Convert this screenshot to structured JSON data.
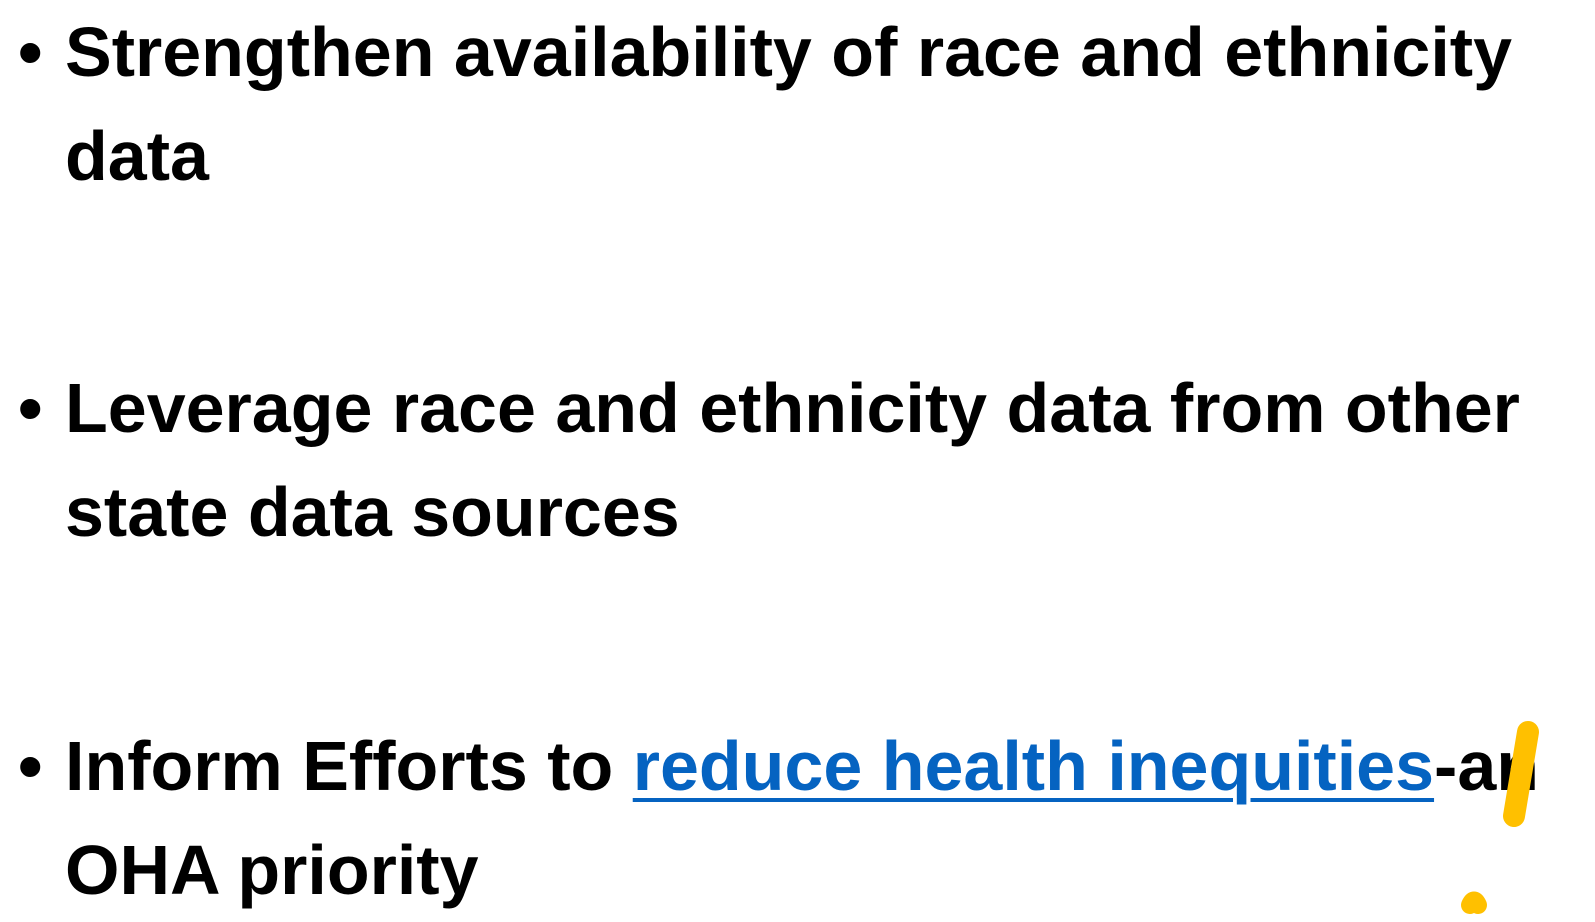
{
  "bullets": [
    {
      "segments": [
        {
          "text": "Strengthen availability of race and ethnicity data"
        }
      ]
    },
    {
      "segments": [
        {
          "text": "Leverage race and ethnicity data from other state data sources"
        }
      ]
    },
    {
      "segments": [
        {
          "text": "Inform Efforts to "
        },
        {
          "text": "reduce health inequities",
          "link": true
        },
        {
          "text": "-an OHA priority"
        }
      ]
    }
  ]
}
